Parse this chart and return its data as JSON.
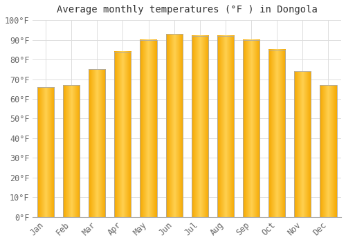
{
  "title": "Average monthly temperatures (°F ) in Dongola",
  "months": [
    "Jan",
    "Feb",
    "Mar",
    "Apr",
    "May",
    "Jun",
    "Jul",
    "Aug",
    "Sep",
    "Oct",
    "Nov",
    "Dec"
  ],
  "values": [
    66,
    67,
    75,
    84,
    90,
    93,
    92,
    92,
    90,
    85,
    74,
    67
  ],
  "bar_color_center": "#FFD050",
  "bar_color_edge": "#F5A800",
  "bar_border_color": "#AAAAAA",
  "background_color": "#FFFFFF",
  "plot_bg_color": "#FFFFFF",
  "grid_color": "#DDDDDD",
  "ylim": [
    0,
    100
  ],
  "yticks": [
    0,
    10,
    20,
    30,
    40,
    50,
    60,
    70,
    80,
    90,
    100
  ],
  "ylabel_format": "{0}°F",
  "title_fontsize": 10,
  "tick_fontsize": 8.5,
  "font_family": "monospace",
  "bar_width": 0.65
}
